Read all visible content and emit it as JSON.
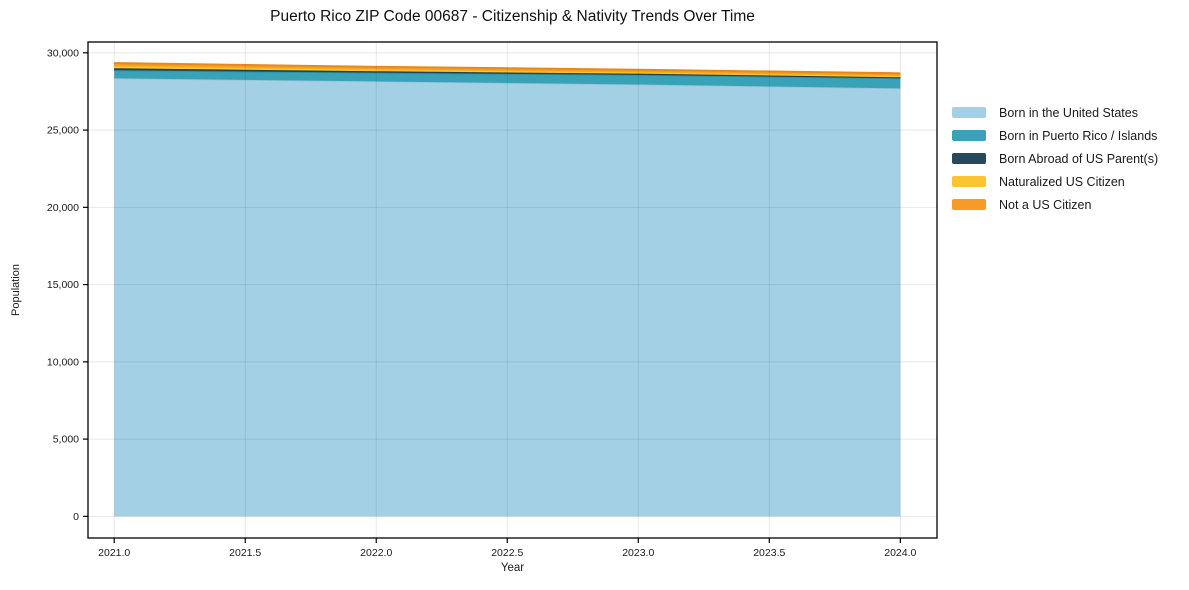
{
  "page": {
    "background": "#ffffff"
  },
  "chart_data": {
    "type": "area",
    "stacked": true,
    "title": "Puerto Rico ZIP Code 00687 - Citizenship & Nativity Trends Over Time",
    "xlabel": "Year",
    "ylabel": "Population",
    "x": [
      2021,
      2022,
      2023,
      2024
    ],
    "series": [
      {
        "name": "Born in the United States",
        "color": "#a4d0e5",
        "edge": "#93c6de",
        "values": [
          28350,
          28150,
          27950,
          27700
        ]
      },
      {
        "name": "Born in Puerto Rico / Islands",
        "color": "#3aa2b7",
        "edge": "#2b93a9",
        "values": [
          520,
          560,
          620,
          650
        ]
      },
      {
        "name": "Born Abroad of US Parent(s)",
        "color": "#28495c",
        "edge": "#1f3d4d",
        "values": [
          130,
          100,
          80,
          70
        ]
      },
      {
        "name": "Naturalized US Citizen",
        "color": "#fcc430",
        "edge": "#f0b110",
        "values": [
          180,
          150,
          130,
          130
        ]
      },
      {
        "name": "Not a US Citizen",
        "color": "#f79a28",
        "edge": "#e7871a",
        "values": [
          160,
          140,
          130,
          130
        ]
      }
    ],
    "x_tick_labels": [
      "2021.0",
      "2021.5",
      "2022.0",
      "2022.5",
      "2023.0",
      "2023.5",
      "2024.0"
    ],
    "y_ticks": [
      0,
      5000,
      10000,
      15000,
      20000,
      25000,
      30000
    ],
    "y_tick_labels": [
      "0",
      "5,000",
      "10,000",
      "15,000",
      "20,000",
      "25,000",
      "30,000"
    ],
    "xlim": [
      2020.9,
      2024.14
    ],
    "ylim": [
      -1400,
      30700
    ],
    "grid": true,
    "legend_position": "right-outside",
    "frame_color": "#000000",
    "grid_color": "rgba(0,0,0,0.09)"
  }
}
